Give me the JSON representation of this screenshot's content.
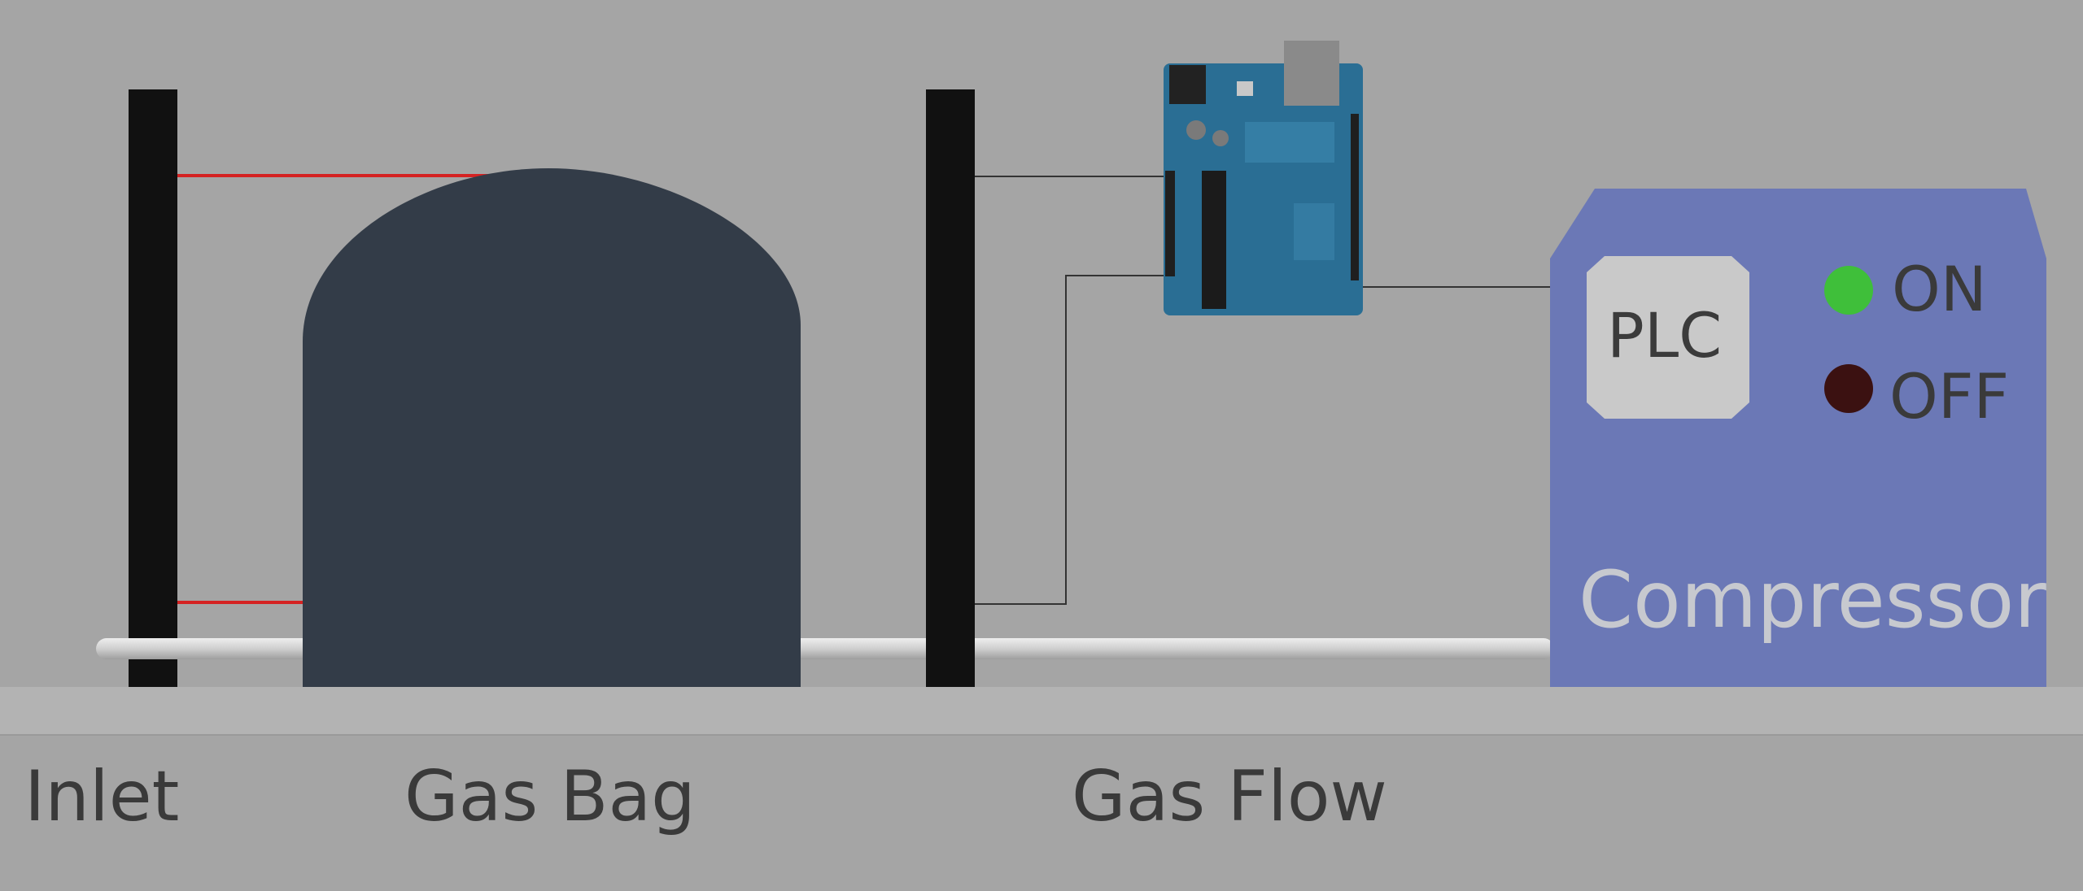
{
  "labels": {
    "inlet": "Inlet",
    "gas_bag": "Gas Bag",
    "gas_flow": "Gas Flow"
  },
  "plc": {
    "label": "PLC"
  },
  "compressor": {
    "label": "Compressor",
    "on_label": "ON",
    "off_label": "OFF",
    "on_color": "#3fbf3a",
    "off_color": "#3b1111",
    "body_color": "#6b78b6"
  },
  "colors": {
    "background": "#a5a5a5",
    "floor": "#b5b5b5",
    "gas_bag": "#333c48",
    "post": "#111111",
    "laser": "#d52222",
    "pipe": "#d8d8d8"
  }
}
